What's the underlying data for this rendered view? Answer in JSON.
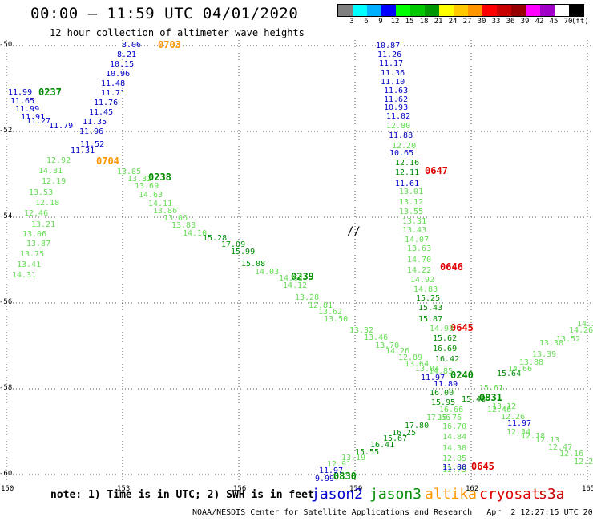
{
  "header": {
    "title": "00:00 – 11:59 UTC 04/01/2020",
    "subtitle": "12 hour collection of altimeter wave heights"
  },
  "color_scale": {
    "colors": [
      "#808080",
      "#00ffff",
      "#00b0ff",
      "#0000ff",
      "#00ff00",
      "#00c800",
      "#009600",
      "#ffff00",
      "#ffc800",
      "#ff9600",
      "#ff0000",
      "#c80000",
      "#960000",
      "#ff00ff",
      "#a000c8",
      "#ffffff",
      "#000000"
    ],
    "labels": [
      "3",
      "6",
      "9",
      "12",
      "15",
      "18",
      "21",
      "24",
      "27",
      "30",
      "33",
      "36",
      "39",
      "42",
      "45",
      "70",
      "(ft)"
    ]
  },
  "axes": {
    "x_ticks": [
      "150",
      "153",
      "156",
      "159",
      "162",
      "165"
    ],
    "y_ticks": [
      "-50",
      "-52",
      "-54",
      "-56",
      "-58",
      "-60"
    ]
  },
  "map_marker": "//",
  "note": "note: 1) Time is in UTC; 2) SWH is in feet",
  "legend": [
    {
      "name": "jason2",
      "color": "#0000c8"
    },
    {
      "name": "jason3",
      "color": "#008c00"
    },
    {
      "name": "altika",
      "color": "#ff9600"
    },
    {
      "name": "cryosat",
      "color": "#e00000"
    },
    {
      "name": "s3a",
      "color": "#c80000"
    }
  ],
  "credit": "NOAA/NESDIS Center for Satellite Applications and Research   Apr  2 12:27:15 UTC 2020",
  "colors": {
    "blue": "#0000c8",
    "green": "#008c00",
    "light_green": "#66dd55",
    "orange": "#ff9600",
    "red": "#e00000"
  },
  "tracks": {
    "time_labels": [
      {
        "text": "0703",
        "color": "orange"
      },
      {
        "text": "0237",
        "color": "green"
      },
      {
        "text": "0704",
        "color": "orange"
      },
      {
        "text": "0238",
        "color": "green"
      },
      {
        "text": "0239",
        "color": "green"
      },
      {
        "text": "0647",
        "color": "red"
      },
      {
        "text": "0646",
        "color": "red"
      },
      {
        "text": "0645",
        "color": "red"
      },
      {
        "text": "0240",
        "color": "green"
      },
      {
        "text": "0831",
        "color": "green"
      },
      {
        "text": "0645",
        "color": "red"
      },
      {
        "text": "0830",
        "color": "green"
      }
    ],
    "values": [
      {
        "text": "8.06",
        "color": "blue"
      },
      {
        "text": "8.21",
        "color": "blue"
      },
      {
        "text": "10.15",
        "color": "blue"
      },
      {
        "text": "10.96",
        "color": "blue"
      },
      {
        "text": "11.48",
        "color": "blue"
      },
      {
        "text": "11.71",
        "color": "blue"
      },
      {
        "text": "11.76",
        "color": "blue"
      },
      {
        "text": "11.45",
        "color": "blue"
      },
      {
        "text": "11.35",
        "color": "blue"
      },
      {
        "text": "11.96",
        "color": "blue"
      },
      {
        "text": "11.52",
        "color": "blue"
      },
      {
        "text": "11.31",
        "color": "blue"
      },
      {
        "text": "11.99",
        "color": "blue"
      },
      {
        "text": "11.65",
        "color": "blue"
      },
      {
        "text": "11.99",
        "color": "blue"
      },
      {
        "text": "11.91",
        "color": "blue"
      },
      {
        "text": "11.27",
        "color": "blue"
      },
      {
        "text": "11.79",
        "color": "blue"
      },
      {
        "text": "12.92",
        "color": "light_green"
      },
      {
        "text": "14.31",
        "color": "light_green"
      },
      {
        "text": "12.19",
        "color": "light_green"
      },
      {
        "text": "13.53",
        "color": "light_green"
      },
      {
        "text": "12.18",
        "color": "light_green"
      },
      {
        "text": "12.46",
        "color": "light_green"
      },
      {
        "text": "13.21",
        "color": "light_green"
      },
      {
        "text": "13.06",
        "color": "light_green"
      },
      {
        "text": "13.87",
        "color": "light_green"
      },
      {
        "text": "13.75",
        "color": "light_green"
      },
      {
        "text": "13.41",
        "color": "light_green"
      },
      {
        "text": "14.31",
        "color": "light_green"
      },
      {
        "text": "13.85",
        "color": "light_green"
      },
      {
        "text": "13.32",
        "color": "light_green"
      },
      {
        "text": "13.69",
        "color": "light_green"
      },
      {
        "text": "14.63",
        "color": "light_green"
      },
      {
        "text": "14.11",
        "color": "light_green"
      },
      {
        "text": "13.86",
        "color": "light_green"
      },
      {
        "text": "13.06",
        "color": "light_green"
      },
      {
        "text": "13.83",
        "color": "light_green"
      },
      {
        "text": "14.10",
        "color": "light_green"
      },
      {
        "text": "15.28",
        "color": "green"
      },
      {
        "text": "17.09",
        "color": "green"
      },
      {
        "text": "15.99",
        "color": "green"
      },
      {
        "text": "15.08",
        "color": "green"
      },
      {
        "text": "14.03",
        "color": "light_green"
      },
      {
        "text": "14.62",
        "color": "light_green"
      },
      {
        "text": "14.12",
        "color": "light_green"
      },
      {
        "text": "13.28",
        "color": "light_green"
      },
      {
        "text": "12.81",
        "color": "light_green"
      },
      {
        "text": "13.62",
        "color": "light_green"
      },
      {
        "text": "13.50",
        "color": "light_green"
      },
      {
        "text": "13.32",
        "color": "light_green"
      },
      {
        "text": "13.46",
        "color": "light_green"
      },
      {
        "text": "13.70",
        "color": "light_green"
      },
      {
        "text": "14.26",
        "color": "light_green"
      },
      {
        "text": "12.89",
        "color": "light_green"
      },
      {
        "text": "13.64",
        "color": "light_green"
      },
      {
        "text": "13.04",
        "color": "light_green"
      },
      {
        "text": "14.85",
        "color": "light_green"
      },
      {
        "text": "10.87",
        "color": "blue"
      },
      {
        "text": "11.26",
        "color": "blue"
      },
      {
        "text": "11.17",
        "color": "blue"
      },
      {
        "text": "11.36",
        "color": "blue"
      },
      {
        "text": "11.10",
        "color": "blue"
      },
      {
        "text": "11.63",
        "color": "blue"
      },
      {
        "text": "11.62",
        "color": "blue"
      },
      {
        "text": "10.93",
        "color": "blue"
      },
      {
        "text": "11.02",
        "color": "blue"
      },
      {
        "text": "12.80",
        "color": "light_green"
      },
      {
        "text": "11.88",
        "color": "blue"
      },
      {
        "text": "12.20",
        "color": "light_green"
      },
      {
        "text": "10.65",
        "color": "blue"
      },
      {
        "text": "12.16",
        "color": "green"
      },
      {
        "text": "12.11",
        "color": "green"
      },
      {
        "text": "11.61",
        "color": "blue"
      },
      {
        "text": "13.01",
        "color": "light_green"
      },
      {
        "text": "13.12",
        "color": "light_green"
      },
      {
        "text": "13.55",
        "color": "light_green"
      },
      {
        "text": "13.31",
        "color": "light_green"
      },
      {
        "text": "13.43",
        "color": "light_green"
      },
      {
        "text": "14.07",
        "color": "light_green"
      },
      {
        "text": "13.63",
        "color": "light_green"
      },
      {
        "text": "14.70",
        "color": "light_green"
      },
      {
        "text": "14.22",
        "color": "light_green"
      },
      {
        "text": "14.92",
        "color": "light_green"
      },
      {
        "text": "14.83",
        "color": "light_green"
      },
      {
        "text": "15.25",
        "color": "green"
      },
      {
        "text": "15.43",
        "color": "green"
      },
      {
        "text": "15.87",
        "color": "green"
      },
      {
        "text": "14.93",
        "color": "light_green"
      },
      {
        "text": "15.62",
        "color": "green"
      },
      {
        "text": "16.69",
        "color": "green"
      },
      {
        "text": "16.42",
        "color": "green"
      },
      {
        "text": "11.97",
        "color": "blue"
      },
      {
        "text": "11.89",
        "color": "blue"
      },
      {
        "text": "16.00",
        "color": "green"
      },
      {
        "text": "15.48",
        "color": "green"
      },
      {
        "text": "15.95",
        "color": "green"
      },
      {
        "text": "16.66",
        "color": "light_green"
      },
      {
        "text": "17.66",
        "color": "light_green"
      },
      {
        "text": "15.76",
        "color": "light_green"
      },
      {
        "text": "16.70",
        "color": "light_green"
      },
      {
        "text": "14.84",
        "color": "light_green"
      },
      {
        "text": "14.38",
        "color": "light_green"
      },
      {
        "text": "12.85",
        "color": "light_green"
      },
      {
        "text": "12.75",
        "color": "light_green"
      },
      {
        "text": "11.80",
        "color": "blue"
      },
      {
        "text": "17.80",
        "color": "green"
      },
      {
        "text": "16.25",
        "color": "green"
      },
      {
        "text": "15.67",
        "color": "green"
      },
      {
        "text": "16.41",
        "color": "green"
      },
      {
        "text": "15.55",
        "color": "green"
      },
      {
        "text": "13.19",
        "color": "light_green"
      },
      {
        "text": "12.91",
        "color": "light_green"
      },
      {
        "text": "11.97",
        "color": "blue"
      },
      {
        "text": "9.99",
        "color": "blue"
      },
      {
        "text": "15.61",
        "color": "light_green"
      },
      {
        "text": "15.64",
        "color": "green"
      },
      {
        "text": "14.66",
        "color": "light_green"
      },
      {
        "text": "13.88",
        "color": "light_green"
      },
      {
        "text": "13.39",
        "color": "light_green"
      },
      {
        "text": "13.38",
        "color": "light_green"
      },
      {
        "text": "13.52",
        "color": "light_green"
      },
      {
        "text": "14.26",
        "color": "light_green"
      },
      {
        "text": "14.25",
        "color": "light_green"
      },
      {
        "text": "13.12",
        "color": "light_green"
      },
      {
        "text": "12.46",
        "color": "light_green"
      },
      {
        "text": "12.26",
        "color": "light_green"
      },
      {
        "text": "11.97",
        "color": "blue"
      },
      {
        "text": "12.34",
        "color": "light_green"
      },
      {
        "text": "12.18",
        "color": "light_green"
      },
      {
        "text": "12.13",
        "color": "light_green"
      },
      {
        "text": "12.47",
        "color": "light_green"
      },
      {
        "text": "12.16",
        "color": "light_green"
      },
      {
        "text": "12.2",
        "color": "light_green"
      }
    ]
  }
}
